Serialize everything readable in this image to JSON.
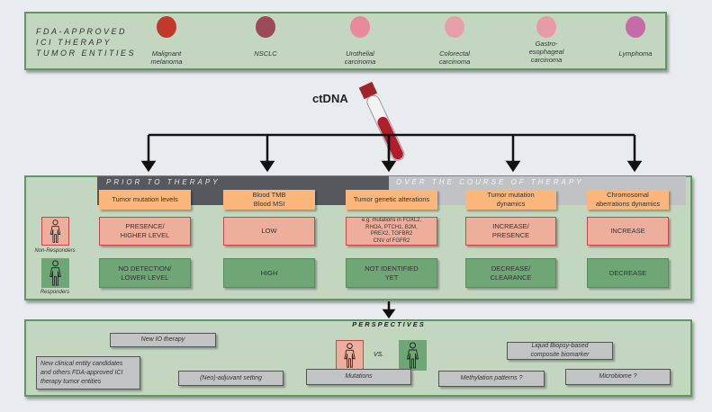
{
  "header": {
    "title_lines": [
      "FDA-APPROVED",
      "ICI THERAPY",
      "TUMOR ENTITIES"
    ],
    "entities": [
      {
        "label": "Malignant\nmelanoma",
        "icon": "skin-icon",
        "color": "#c0392b"
      },
      {
        "label": "NSCLC",
        "icon": "lungs-icon",
        "color": "#9b4a5a"
      },
      {
        "label": "Urothelial\ncarcinoma",
        "icon": "bladder-icon",
        "color": "#e98a9a"
      },
      {
        "label": "Colorectal\ncarcinoma",
        "icon": "colon-icon",
        "color": "#e8a0a8"
      },
      {
        "label": "Gastro-\nesophageal\ncarcinoma",
        "icon": "stomach-icon",
        "color": "#e89aa5"
      },
      {
        "label": "Lymphoma",
        "icon": "lymphocyte-icon",
        "color": "#c76aa8"
      }
    ]
  },
  "ctdna_label": "ctDNA",
  "phases": {
    "prior": "PRIOR TO THERAPY",
    "over": "OVER THE COURSE OF THERAPY"
  },
  "columns": [
    {
      "header": "Tumor mutation levels",
      "non_responders": "PRESENCE/\nHIGHER LEVEL",
      "responders": "NO DETECTION/\nLOWER LEVEL"
    },
    {
      "header": "Blood TMB\nBlood MSI",
      "non_responders": "LOW",
      "responders": "HIGH"
    },
    {
      "header": "Tumor genetic alterations",
      "non_responders": "e.g. mutations in FOXL2,\nRHOA, PTCH1, B2M,\nPREX2, TGFBR2\nCNV of FGFR2",
      "responders": "NOT IDENTIFIED\nYET"
    },
    {
      "header": "Tumor mutation\ndynamics",
      "non_responders": "INCREASE/\nPRESENCE",
      "responders": "DECREASE/\nCLEARANCE"
    },
    {
      "header": "Chromosomal\naberrations dynamics",
      "non_responders": "INCREASE",
      "responders": "DECREASE"
    }
  ],
  "groups": {
    "non_responders": "Non-Responders",
    "responders": "Responders"
  },
  "perspectives": {
    "title": "PERSPECTIVES",
    "vs": "VS.",
    "items": [
      "New IO therapy",
      "New clinical entity candidates\nand others FDA-approved ICI\ntherapy tumor entities",
      "(Neo)-adjuvant setting",
      "Mutations",
      "Methylation patterns ?",
      "Microbiome  ?",
      "Liquid Biopsy-based\ncomposite biomarker"
    ]
  },
  "colors": {
    "panel": "#c3d7c0",
    "header": "#fbb67b",
    "non_responder": "#eeae9c",
    "responder": "#6ea676",
    "prior_band": "#55595e",
    "over_band": "#c0c2c4"
  }
}
